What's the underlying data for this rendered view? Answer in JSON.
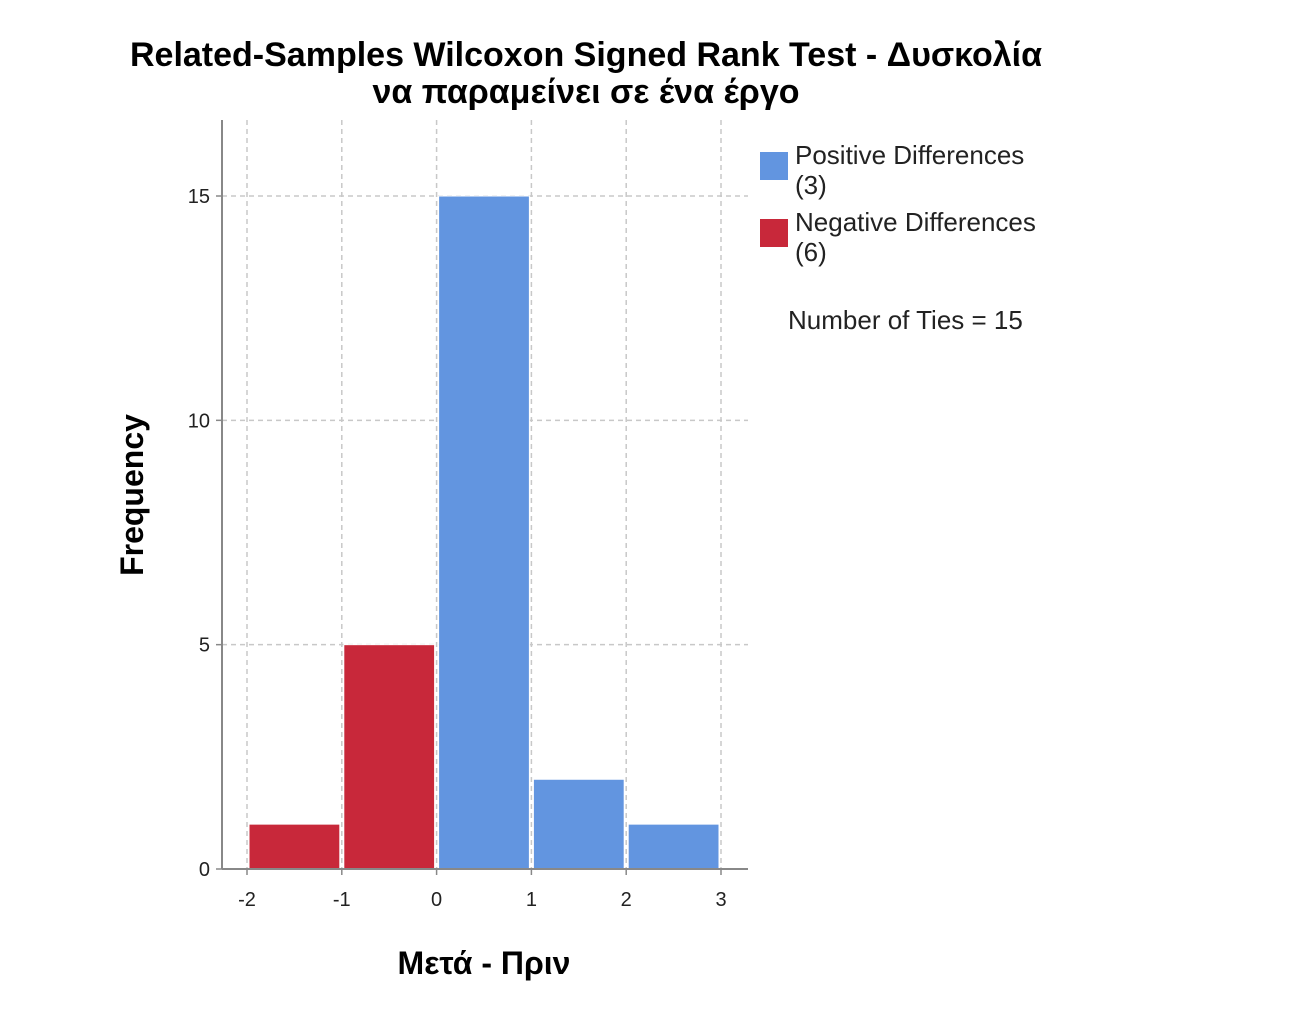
{
  "chart_data": {
    "type": "bar",
    "title_lines": [
      "Related-Samples Wilcoxon Signed Rank Test - Δυσκολία",
      "να παραμείνει σε ένα έργο"
    ],
    "xlabel": "Μετά - Πριν",
    "ylabel": "Frequency",
    "xlim": [
      -2,
      3
    ],
    "ylim": [
      0,
      16.7
    ],
    "x_ticks": [
      "-2",
      "-1",
      "0",
      "1",
      "2",
      "3"
    ],
    "y_ticks": [
      "0",
      "5",
      "10",
      "15"
    ],
    "grid": true,
    "legend_position": "right",
    "series": [
      {
        "name": "Negative Differences",
        "count": "(6)",
        "color": "#c8283a",
        "bins": [
          {
            "x0": -2,
            "x1": -1,
            "value": 1
          },
          {
            "x0": -1,
            "x1": 0,
            "value": 5
          }
        ]
      },
      {
        "name": "Positive Differences",
        "count": "(3)",
        "color": "#6295e0",
        "bins": [
          {
            "x0": 0,
            "x1": 1,
            "value": 15
          },
          {
            "x0": 1,
            "x1": 2,
            "value": 2
          },
          {
            "x0": 2,
            "x1": 3,
            "value": 1
          }
        ]
      }
    ],
    "legend": [
      {
        "name": "Positive Differences",
        "count": "(3)",
        "color": "#6295e0"
      },
      {
        "name": "Negative Differences",
        "count": "(6)",
        "color": "#c8283a"
      }
    ],
    "annotation": "Number of Ties = 15"
  }
}
